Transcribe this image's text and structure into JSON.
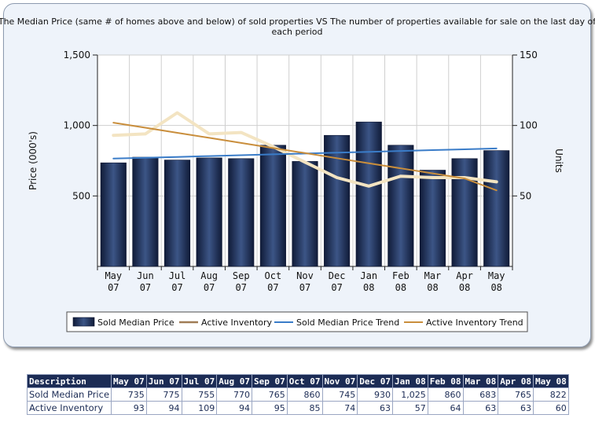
{
  "chart_data": {
    "type": "bar",
    "title_lines": [
      "The Median Price (same # of homes above and below) of sold properties VS The number of properties available for sale on the last day of",
      "each period"
    ],
    "categories": [
      [
        "May",
        "07"
      ],
      [
        "Jun",
        "07"
      ],
      [
        "Jul",
        "07"
      ],
      [
        "Aug",
        "07"
      ],
      [
        "Sep",
        "07"
      ],
      [
        "Oct",
        "07"
      ],
      [
        "Nov",
        "07"
      ],
      [
        "Dec",
        "07"
      ],
      [
        "Jan",
        "08"
      ],
      [
        "Feb",
        "08"
      ],
      [
        "Mar",
        "08"
      ],
      [
        "Apr",
        "08"
      ],
      [
        "May",
        "08"
      ]
    ],
    "ylabel": "Price (000's)",
    "y2label": "Units",
    "ylim": [
      0,
      1500
    ],
    "y2lim": [
      0,
      150
    ],
    "yticks": [
      {
        "value": 1500,
        "label": "1,500"
      },
      {
        "value": 1000,
        "label": "1,000"
      },
      {
        "value": 500,
        "label": "500"
      }
    ],
    "y2ticks": [
      {
        "value": 150,
        "label": "150"
      },
      {
        "value": 100,
        "label": "100"
      },
      {
        "value": 50,
        "label": "50"
      }
    ],
    "grid": true,
    "legend_position": "bottom",
    "series": [
      {
        "name": "Sold Median Price",
        "kind": "bar",
        "axis": "left",
        "color": "#1c2c55",
        "values": [
          735,
          775,
          755,
          770,
          765,
          860,
          745,
          930,
          1025,
          860,
          683,
          765,
          822
        ]
      },
      {
        "name": "Active Inventory",
        "kind": "line",
        "axis": "right",
        "color": "#f3e4c2",
        "values": [
          93,
          94,
          109,
          94,
          95,
          85,
          74,
          63,
          57,
          64,
          63,
          63,
          60
        ]
      },
      {
        "name": "Sold Median Price Trend",
        "kind": "trend",
        "axis": "left",
        "color": "#3a7cc8",
        "values": [
          765,
          771,
          777,
          783,
          789,
          795,
          801,
          807,
          813,
          819,
          825,
          831,
          837
        ]
      },
      {
        "name": "Active Inventory Trend",
        "kind": "trend",
        "axis": "right",
        "color": "#c98e3c",
        "values": [
          102,
          98.4,
          94.8,
          91.2,
          87.6,
          84,
          80.4,
          76.8,
          73.2,
          69.6,
          66,
          62.4,
          54
        ]
      }
    ]
  },
  "table": {
    "headers": [
      "Description",
      "May 07",
      "Jun 07",
      "Jul 07",
      "Aug 07",
      "Sep 07",
      "Oct 07",
      "Nov 07",
      "Dec 07",
      "Jan 08",
      "Feb 08",
      "Mar 08",
      "Apr 08",
      "May 08"
    ],
    "rows": [
      [
        "Sold Median Price",
        "735",
        "775",
        "755",
        "770",
        "765",
        "860",
        "745",
        "930",
        "1,025",
        "860",
        "683",
        "765",
        "822"
      ],
      [
        "Active Inventory",
        "93",
        "94",
        "109",
        "94",
        "95",
        "85",
        "74",
        "63",
        "57",
        "64",
        "63",
        "63",
        "60"
      ]
    ]
  }
}
